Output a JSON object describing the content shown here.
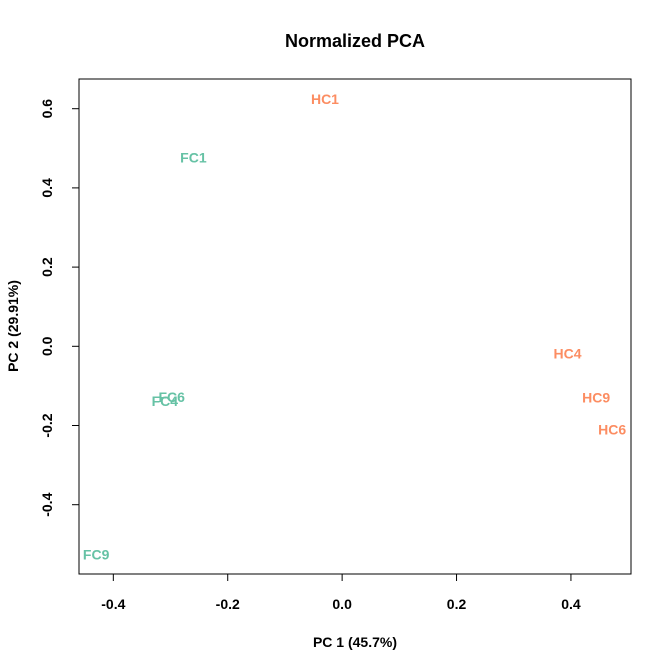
{
  "chart_data": {
    "type": "scatter",
    "title": "Normalized PCA",
    "xlabel": "PC 1 (45.7%)",
    "ylabel": "PC 2 (29.91%)",
    "xlim": [
      -0.46,
      0.505
    ],
    "ylim": [
      -0.575,
      0.675
    ],
    "grid": false,
    "legend": "none",
    "x_ticks": [
      -0.4,
      -0.2,
      0.0,
      0.2,
      0.4
    ],
    "x_tick_labels": [
      "-0.4",
      "-0.2",
      "0.0",
      "0.2",
      "0.4"
    ],
    "y_ticks": [
      -0.4,
      -0.2,
      0.0,
      0.2,
      0.4,
      0.6
    ],
    "y_tick_labels": [
      "-0.4",
      "-0.2",
      "0.0",
      "0.2",
      "0.4",
      "0.6"
    ],
    "colors": {
      "FC": "#66c2a5",
      "HC": "#fc8d62"
    },
    "points": [
      {
        "label": "HC1",
        "group": "HC",
        "x": -0.03,
        "y": 0.625
      },
      {
        "label": "FC1",
        "group": "FC",
        "x": -0.26,
        "y": 0.477
      },
      {
        "label": "HC4",
        "group": "HC",
        "x": 0.394,
        "y": -0.018
      },
      {
        "label": "FC6",
        "group": "FC",
        "x": -0.298,
        "y": -0.128
      },
      {
        "label": "FC4",
        "group": "FC",
        "x": -0.31,
        "y": -0.138
      },
      {
        "label": "HC9",
        "group": "HC",
        "x": 0.444,
        "y": -0.129
      },
      {
        "label": "HC6",
        "group": "HC",
        "x": 0.472,
        "y": -0.21
      },
      {
        "label": "FC9",
        "group": "FC",
        "x": -0.43,
        "y": -0.526
      }
    ]
  }
}
